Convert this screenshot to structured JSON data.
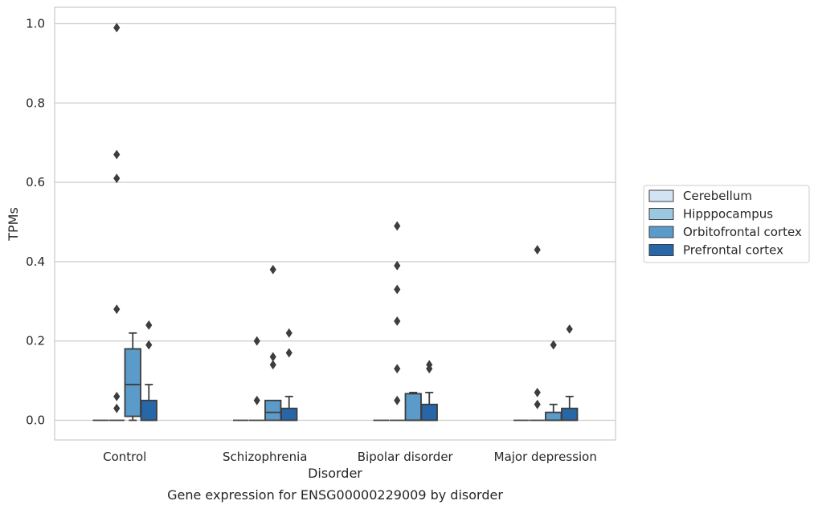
{
  "chart_data": {
    "type": "box",
    "title": "",
    "caption": "Gene expression for ENSG00000229009 by disorder",
    "xlabel": "Disorder",
    "ylabel": "TPMs",
    "categories": [
      "Control",
      "Schizophrenia",
      "Bipolar disorder",
      "Major depression"
    ],
    "ylim": [
      -0.05,
      1.04
    ],
    "yticks": [
      0.0,
      0.2,
      0.4,
      0.6,
      0.8,
      1.0
    ],
    "ytick_labels": [
      "0.0",
      "0.2",
      "0.4",
      "0.6",
      "0.8",
      "1.0"
    ],
    "grid": "horizontal",
    "legend_position": "right",
    "series": [
      {
        "name": "Cerebellum",
        "color": "#d2e3f3",
        "boxes": [
          {
            "whisker_low": 0,
            "q1": 0,
            "median": 0,
            "q3": 0,
            "whisker_high": 0,
            "outliers": []
          },
          {
            "whisker_low": 0,
            "q1": 0,
            "median": 0,
            "q3": 0,
            "whisker_high": 0,
            "outliers": []
          },
          {
            "whisker_low": 0,
            "q1": 0,
            "median": 0,
            "q3": 0,
            "whisker_high": 0,
            "outliers": []
          },
          {
            "whisker_low": 0,
            "q1": 0,
            "median": 0,
            "q3": 0,
            "whisker_high": 0,
            "outliers": []
          }
        ]
      },
      {
        "name": "Hipppocampus",
        "color": "#9ac8e0",
        "boxes": [
          {
            "whisker_low": 0,
            "q1": 0,
            "median": 0,
            "q3": 0,
            "whisker_high": 0,
            "outliers": [
              0.03,
              0.06,
              0.28,
              0.61,
              0.67,
              0.99
            ]
          },
          {
            "whisker_low": 0,
            "q1": 0,
            "median": 0,
            "q3": 0,
            "whisker_high": 0,
            "outliers": [
              0.05,
              0.2
            ]
          },
          {
            "whisker_low": 0,
            "q1": 0,
            "median": 0,
            "q3": 0,
            "whisker_high": 0,
            "outliers": [
              0.05,
              0.13,
              0.25,
              0.33,
              0.39,
              0.49
            ]
          },
          {
            "whisker_low": 0,
            "q1": 0,
            "median": 0,
            "q3": 0,
            "whisker_high": 0,
            "outliers": [
              0.04,
              0.07,
              0.43
            ]
          }
        ]
      },
      {
        "name": "Orbitofrontal cortex",
        "color": "#5a9bc9",
        "boxes": [
          {
            "whisker_low": 0,
            "q1": 0.01,
            "median": 0.09,
            "q3": 0.18,
            "whisker_high": 0.22,
            "outliers": []
          },
          {
            "whisker_low": 0,
            "q1": 0,
            "median": 0.02,
            "q3": 0.05,
            "whisker_high": 0.05,
            "outliers": [
              0.14,
              0.16,
              0.38
            ]
          },
          {
            "whisker_low": 0,
            "q1": 0,
            "median": 0,
            "q3": 0.067,
            "whisker_high": 0.07,
            "outliers": []
          },
          {
            "whisker_low": 0,
            "q1": 0,
            "median": 0,
            "q3": 0.02,
            "whisker_high": 0.04,
            "outliers": [
              0.19
            ]
          }
        ]
      },
      {
        "name": "Prefrontal cortex",
        "color": "#2767a7",
        "boxes": [
          {
            "whisker_low": 0,
            "q1": 0,
            "median": 0,
            "q3": 0.05,
            "whisker_high": 0.09,
            "outliers": [
              0.19,
              0.24
            ]
          },
          {
            "whisker_low": 0,
            "q1": 0,
            "median": 0,
            "q3": 0.03,
            "whisker_high": 0.06,
            "outliers": [
              0.17,
              0.22
            ]
          },
          {
            "whisker_low": 0,
            "q1": 0,
            "median": 0,
            "q3": 0.04,
            "whisker_high": 0.07,
            "outliers": [
              0.13,
              0.14
            ]
          },
          {
            "whisker_low": 0,
            "q1": 0,
            "median": 0,
            "q3": 0.03,
            "whisker_high": 0.06,
            "outliers": [
              0.23
            ]
          }
        ]
      }
    ]
  }
}
